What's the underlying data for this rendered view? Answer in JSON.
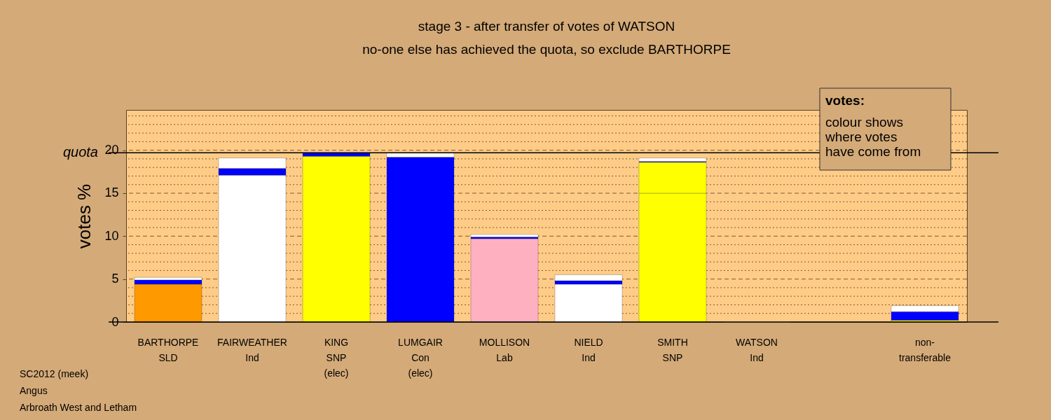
{
  "chart_data": {
    "type": "bar",
    "stacked": true,
    "title": "stage 3 - after transfer of votes of WATSON",
    "subtitle": "no-one else has achieved the quota, so exclude BARTHORPE",
    "ylabel": "votes %",
    "categories": [
      "BARTHORPE\nSLD",
      "FAIRWEATHER\nInd",
      "KING\nSNP\n(elec)",
      "LUMGAIR\nCon\n(elec)",
      "MOLLISON\nLab",
      "NIELD\nInd",
      "SMITH\nSNP",
      "WATSON\nInd",
      null,
      "non-\ntransferable"
    ],
    "series": [
      {
        "colors": [
          "#ff9900",
          "#ffffff",
          "#ffff00",
          "#0000ff",
          "#ffb0c0",
          "#ffffff",
          "#ffff00",
          "#ffffff",
          null,
          null
        ],
        "values": [
          4.4,
          17.1,
          19.3,
          19.2,
          9.7,
          4.4,
          15.0,
          0,
          null,
          null
        ]
      },
      {
        "color": "#ffff00",
        "values": [
          null,
          null,
          null,
          null,
          null,
          null,
          3.6,
          null,
          null,
          0.2
        ]
      },
      {
        "color": "#0000ff",
        "values": [
          0.5,
          0.8,
          0.4,
          null,
          0.2,
          0.4,
          0.1,
          null,
          null,
          1.0
        ]
      },
      {
        "color": "#ffffff",
        "values": [
          0.3,
          1.2,
          null,
          0.5,
          0.3,
          0.7,
          0.4,
          null,
          null,
          0.7
        ]
      }
    ],
    "ylim": [
      0,
      24.7
    ],
    "yticks": [
      0,
      {
        "value": 1,
        "label": null
      },
      {
        "value": 2,
        "label": null
      },
      {
        "value": 3,
        "label": null
      },
      {
        "value": 4,
        "label": null
      },
      5,
      {
        "value": 6,
        "label": null
      },
      {
        "value": 7,
        "label": null
      },
      {
        "value": 8,
        "label": null
      },
      {
        "value": 9,
        "label": null
      },
      10,
      {
        "value": 11,
        "label": null
      },
      {
        "value": 12,
        "label": null
      },
      {
        "value": 13,
        "label": null
      },
      {
        "value": 14,
        "label": null
      },
      15,
      {
        "value": 16,
        "label": null
      },
      {
        "value": 17,
        "label": null
      },
      {
        "value": 18,
        "label": null
      },
      {
        "value": 19,
        "label": null
      },
      20,
      {
        "value": 21,
        "label": null
      },
      {
        "value": 22,
        "label": null
      },
      {
        "value": 23,
        "label": null
      },
      {
        "value": 24,
        "label": null
      }
    ],
    "grid": "y",
    "ref_lines": [
      {
        "axis": "y",
        "value": 19.7,
        "label": "quota",
        "color": "#000000",
        "line_style": "solid"
      }
    ],
    "annotations": [
      "votes:\ncolour shows\nwhere votes\nhave come from",
      "SC2012 (meek)",
      "Angus",
      "Arbroath West and Letham"
    ]
  }
}
